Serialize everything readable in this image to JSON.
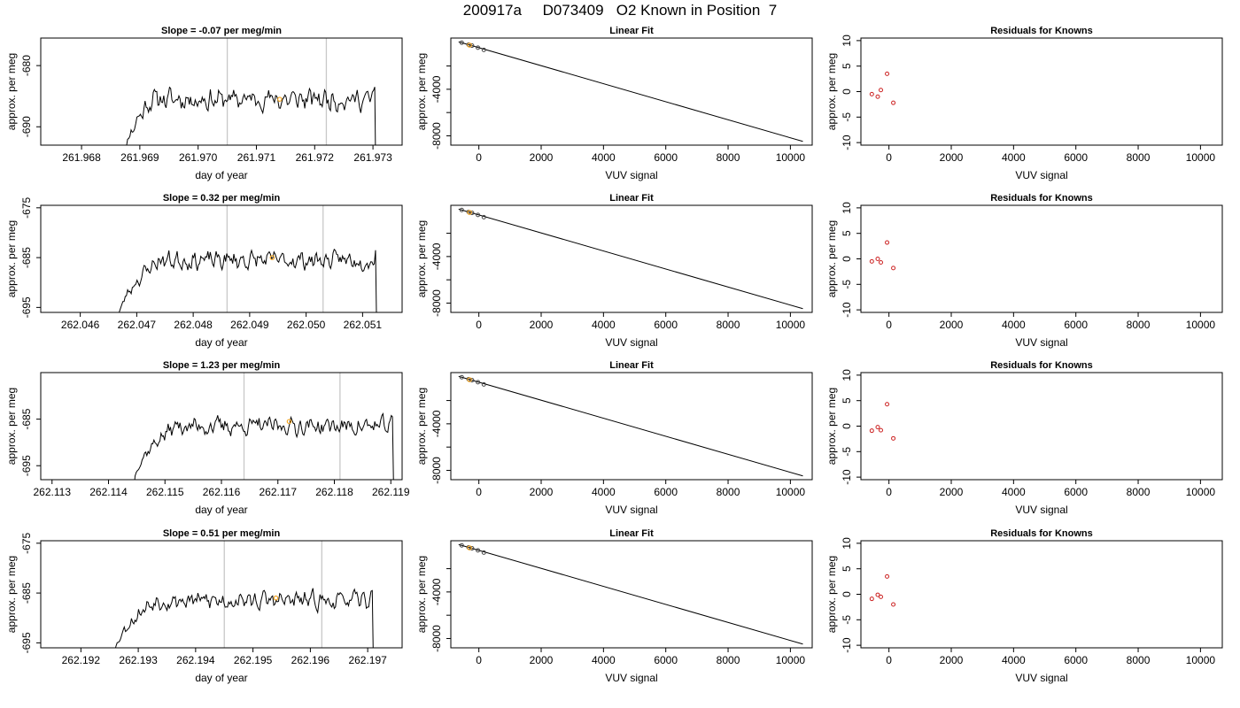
{
  "page_title": "200917a     D073409   O2 Known in Position  7",
  "colors": {
    "axis": "#000000",
    "trace": "#000000",
    "marker_lines": "#c8c8c8",
    "highlight": "#f5a623",
    "residual_points": "#cc2222",
    "fit_points": "#444444"
  },
  "chart_data": [
    {
      "type": "line",
      "row": 1,
      "title": "Slope =  -0.07  per meg/min",
      "xlabel": "day of year",
      "ylabel": "approx. per meg",
      "xlim": [
        261.9673,
        261.9735
      ],
      "ylim": [
        -693,
        -675.5
      ],
      "xticks": [
        261.968,
        261.969,
        261.97,
        261.971,
        261.972,
        261.973
      ],
      "xtick_labels": [
        "261.968",
        "261.969",
        "261.970",
        "261.971",
        "261.972",
        "261.973"
      ],
      "yticks": [
        -690,
        -680
      ],
      "ytick_labels": [
        "-690",
        "-680"
      ],
      "vlines": [
        261.9705,
        261.9722
      ],
      "trace": {
        "start": 261.96865,
        "end": 261.97305,
        "base": -685.5,
        "noise": 2.2,
        "rise_from": -700,
        "rise_end": 261.9692,
        "end_y": -700,
        "seed": 11
      },
      "highlight": {
        "x": 261.9714,
        "y": -685.5
      }
    },
    {
      "type": "line",
      "row": 2,
      "title": "Slope =  0.32  per meg/min",
      "xlabel": "day of year",
      "ylabel": "approx. per meg",
      "xlim": [
        262.0453,
        262.0517
      ],
      "ylim": [
        -696,
        -674.5
      ],
      "xticks": [
        262.046,
        262.047,
        262.048,
        262.049,
        262.05,
        262.051
      ],
      "xtick_labels": [
        "262.046",
        "262.047",
        "262.048",
        "262.049",
        "262.050",
        "262.051"
      ],
      "yticks": [
        -695,
        -685,
        -675
      ],
      "ytick_labels": [
        "-695",
        "-685",
        "-675"
      ],
      "vlines": [
        262.0486,
        262.0503
      ],
      "trace": {
        "start": 262.04665,
        "end": 262.05125,
        "base": -685.5,
        "noise": 2.4,
        "rise_from": -700,
        "rise_end": 262.0474,
        "end_y": -700,
        "seed": 23
      },
      "highlight": {
        "x": 262.0494,
        "y": -685
      }
    },
    {
      "type": "line",
      "row": 3,
      "title": "Slope =  1.23  per meg/min",
      "xlabel": "day of year",
      "ylabel": "approx. per meg",
      "xlim": [
        262.1128,
        262.1192
      ],
      "ylim": [
        -698,
        -675
      ],
      "xticks": [
        262.113,
        262.114,
        262.115,
        262.116,
        262.117,
        262.118,
        262.119
      ],
      "xtick_labels": [
        "262.113",
        "262.114",
        "262.115",
        "262.116",
        "262.117",
        "262.118",
        "262.119"
      ],
      "yticks": [
        -695,
        -685
      ],
      "ytick_labels": [
        "-695",
        "-685"
      ],
      "vlines": [
        262.1164,
        262.1181
      ],
      "trace": {
        "start": 262.11445,
        "end": 262.11905,
        "base": -686.5,
        "noise": 2.5,
        "rise_from": -700,
        "rise_end": 262.1152,
        "end_y": -700,
        "seed": 37
      },
      "highlight": {
        "x": 262.1172,
        "y": -685.5
      }
    },
    {
      "type": "line",
      "row": 4,
      "title": "Slope =  0.51  per meg/min",
      "xlabel": "day of year",
      "ylabel": "approx. per meg",
      "xlim": [
        262.1913,
        262.1976
      ],
      "ylim": [
        -696,
        -674.5
      ],
      "xticks": [
        262.192,
        262.193,
        262.194,
        262.195,
        262.196,
        262.197
      ],
      "xtick_labels": [
        "262.192",
        "262.193",
        "262.194",
        "262.195",
        "262.196",
        "262.197"
      ],
      "yticks": [
        -695,
        -685,
        -675
      ],
      "ytick_labels": [
        "-695",
        "-685",
        "-675"
      ],
      "vlines": [
        262.1945,
        262.1962
      ],
      "trace": {
        "start": 262.19255,
        "end": 262.1971,
        "base": -686.5,
        "noise": 2.3,
        "rise_from": -700,
        "rise_end": 262.1933,
        "end_y": -700,
        "seed": 53
      },
      "highlight": {
        "x": 262.1954,
        "y": -686
      }
    },
    {
      "type": "scatter",
      "row": 1,
      "title": "Linear Fit",
      "xlabel": "VUV signal",
      "ylabel": "approx. per meg",
      "xlim": [
        -900,
        10700
      ],
      "ylim": [
        -8800,
        400
      ],
      "xticks": [
        0,
        2000,
        4000,
        6000,
        8000,
        10000
      ],
      "xtick_labels": [
        "0",
        "2000",
        "4000",
        "6000",
        "8000",
        "10000"
      ],
      "yticks": [
        -8000,
        -6000,
        -4000,
        -2000
      ],
      "ytick_labels": [
        "-8000",
        "",
        "-4000",
        ""
      ],
      "points": [
        {
          "x": -550,
          "y": 0
        },
        {
          "x": -330,
          "y": -170
        },
        {
          "x": -220,
          "y": -250
        },
        {
          "x": -30,
          "y": -430
        },
        {
          "x": 160,
          "y": -620
        }
      ],
      "highlight": {
        "x": -300,
        "y": -210
      },
      "fit_line": {
        "x1": -650,
        "y1": 80,
        "x2": 10400,
        "y2": -8480
      }
    },
    {
      "type": "scatter",
      "row": 2,
      "title": "Linear Fit",
      "xlabel": "VUV signal",
      "ylabel": "approx. per meg",
      "xlim": [
        -900,
        10700
      ],
      "ylim": [
        -8800,
        400
      ],
      "xticks": [
        0,
        2000,
        4000,
        6000,
        8000,
        10000
      ],
      "xtick_labels": [
        "0",
        "2000",
        "4000",
        "6000",
        "8000",
        "10000"
      ],
      "yticks": [
        -8000,
        -6000,
        -4000,
        -2000
      ],
      "ytick_labels": [
        "-8000",
        "",
        "-4000",
        ""
      ],
      "points": [
        {
          "x": -550,
          "y": 0
        },
        {
          "x": -330,
          "y": -170
        },
        {
          "x": -220,
          "y": -250
        },
        {
          "x": -30,
          "y": -430
        },
        {
          "x": 160,
          "y": -620
        }
      ],
      "highlight": {
        "x": -300,
        "y": -210
      },
      "fit_line": {
        "x1": -650,
        "y1": 80,
        "x2": 10400,
        "y2": -8480
      }
    },
    {
      "type": "scatter",
      "row": 3,
      "title": "Linear Fit",
      "xlabel": "VUV signal",
      "ylabel": "approx. per meg",
      "xlim": [
        -900,
        10700
      ],
      "ylim": [
        -8800,
        400
      ],
      "xticks": [
        0,
        2000,
        4000,
        6000,
        8000,
        10000
      ],
      "xtick_labels": [
        "0",
        "2000",
        "4000",
        "6000",
        "8000",
        "10000"
      ],
      "yticks": [
        -8000,
        -6000,
        -4000,
        -2000
      ],
      "ytick_labels": [
        "-8000",
        "",
        "-4000",
        ""
      ],
      "points": [
        {
          "x": -550,
          "y": 0
        },
        {
          "x": -330,
          "y": -170
        },
        {
          "x": -220,
          "y": -250
        },
        {
          "x": -30,
          "y": -430
        },
        {
          "x": 160,
          "y": -620
        }
      ],
      "highlight": {
        "x": -300,
        "y": -210
      },
      "fit_line": {
        "x1": -650,
        "y1": 80,
        "x2": 10400,
        "y2": -8480
      }
    },
    {
      "type": "scatter",
      "row": 4,
      "title": "Linear Fit",
      "xlabel": "VUV signal",
      "ylabel": "approx. per meg",
      "xlim": [
        -900,
        10700
      ],
      "ylim": [
        -8800,
        400
      ],
      "xticks": [
        0,
        2000,
        4000,
        6000,
        8000,
        10000
      ],
      "xtick_labels": [
        "0",
        "2000",
        "4000",
        "6000",
        "8000",
        "10000"
      ],
      "yticks": [
        -8000,
        -6000,
        -4000,
        -2000
      ],
      "ytick_labels": [
        "-8000",
        "",
        "-4000",
        ""
      ],
      "points": [
        {
          "x": -550,
          "y": 0
        },
        {
          "x": -330,
          "y": -170
        },
        {
          "x": -220,
          "y": -250
        },
        {
          "x": -30,
          "y": -430
        },
        {
          "x": 160,
          "y": -620
        }
      ],
      "highlight": {
        "x": -300,
        "y": -210
      },
      "fit_line": {
        "x1": -650,
        "y1": 80,
        "x2": 10400,
        "y2": -8480
      }
    },
    {
      "type": "scatter",
      "row": 1,
      "title": "Residuals for Knowns",
      "xlabel": "VUV signal",
      "ylabel": "approx. per meg",
      "xlim": [
        -900,
        10700
      ],
      "ylim": [
        -10.5,
        10.5
      ],
      "xticks": [
        0,
        2000,
        4000,
        6000,
        8000,
        10000
      ],
      "xtick_labels": [
        "0",
        "2000",
        "4000",
        "6000",
        "8000",
        "10000"
      ],
      "yticks": [
        -10,
        -5,
        0,
        5,
        10
      ],
      "ytick_labels": [
        "-10",
        "-5",
        "0",
        "5",
        "10"
      ],
      "points": [
        {
          "x": -550,
          "y": -0.5
        },
        {
          "x": -360,
          "y": -1.0
        },
        {
          "x": -260,
          "y": 0.3
        },
        {
          "x": -60,
          "y": 3.5
        },
        {
          "x": 140,
          "y": -2.2
        }
      ]
    },
    {
      "type": "scatter",
      "row": 2,
      "title": "Residuals for Knowns",
      "xlabel": "VUV signal",
      "ylabel": "approx. per meg",
      "xlim": [
        -900,
        10700
      ],
      "ylim": [
        -10.5,
        10.5
      ],
      "xticks": [
        0,
        2000,
        4000,
        6000,
        8000,
        10000
      ],
      "xtick_labels": [
        "0",
        "2000",
        "4000",
        "6000",
        "8000",
        "10000"
      ],
      "yticks": [
        -10,
        -5,
        0,
        5,
        10
      ],
      "ytick_labels": [
        "-10",
        "-5",
        "0",
        "5",
        "10"
      ],
      "points": [
        {
          "x": -550,
          "y": -0.5
        },
        {
          "x": -360,
          "y": 0.0
        },
        {
          "x": -260,
          "y": -0.7
        },
        {
          "x": -60,
          "y": 3.2
        },
        {
          "x": 140,
          "y": -1.8
        }
      ]
    },
    {
      "type": "scatter",
      "row": 3,
      "title": "Residuals for Knowns",
      "xlabel": "VUV signal",
      "ylabel": "approx. per meg",
      "xlim": [
        -900,
        10700
      ],
      "ylim": [
        -10.5,
        10.5
      ],
      "xticks": [
        0,
        2000,
        4000,
        6000,
        8000,
        10000
      ],
      "xtick_labels": [
        "0",
        "2000",
        "4000",
        "6000",
        "8000",
        "10000"
      ],
      "yticks": [
        -10,
        -5,
        0,
        5,
        10
      ],
      "ytick_labels": [
        "-10",
        "-5",
        "0",
        "5",
        "10"
      ],
      "points": [
        {
          "x": -550,
          "y": -0.9
        },
        {
          "x": -360,
          "y": -0.2
        },
        {
          "x": -260,
          "y": -0.8
        },
        {
          "x": -60,
          "y": 4.3
        },
        {
          "x": 140,
          "y": -2.4
        }
      ]
    },
    {
      "type": "scatter",
      "row": 4,
      "title": "Residuals for Knowns",
      "xlabel": "VUV signal",
      "ylabel": "approx. per meg",
      "xlim": [
        -900,
        10700
      ],
      "ylim": [
        -10.5,
        10.5
      ],
      "xticks": [
        0,
        2000,
        4000,
        6000,
        8000,
        10000
      ],
      "xtick_labels": [
        "0",
        "2000",
        "4000",
        "6000",
        "8000",
        "10000"
      ],
      "yticks": [
        -10,
        -5,
        0,
        5,
        10
      ],
      "ytick_labels": [
        "-10",
        "-5",
        "0",
        "5",
        "10"
      ],
      "points": [
        {
          "x": -550,
          "y": -0.9
        },
        {
          "x": -360,
          "y": -0.1
        },
        {
          "x": -260,
          "y": -0.5
        },
        {
          "x": -60,
          "y": 3.5
        },
        {
          "x": 140,
          "y": -2.0
        }
      ]
    }
  ]
}
